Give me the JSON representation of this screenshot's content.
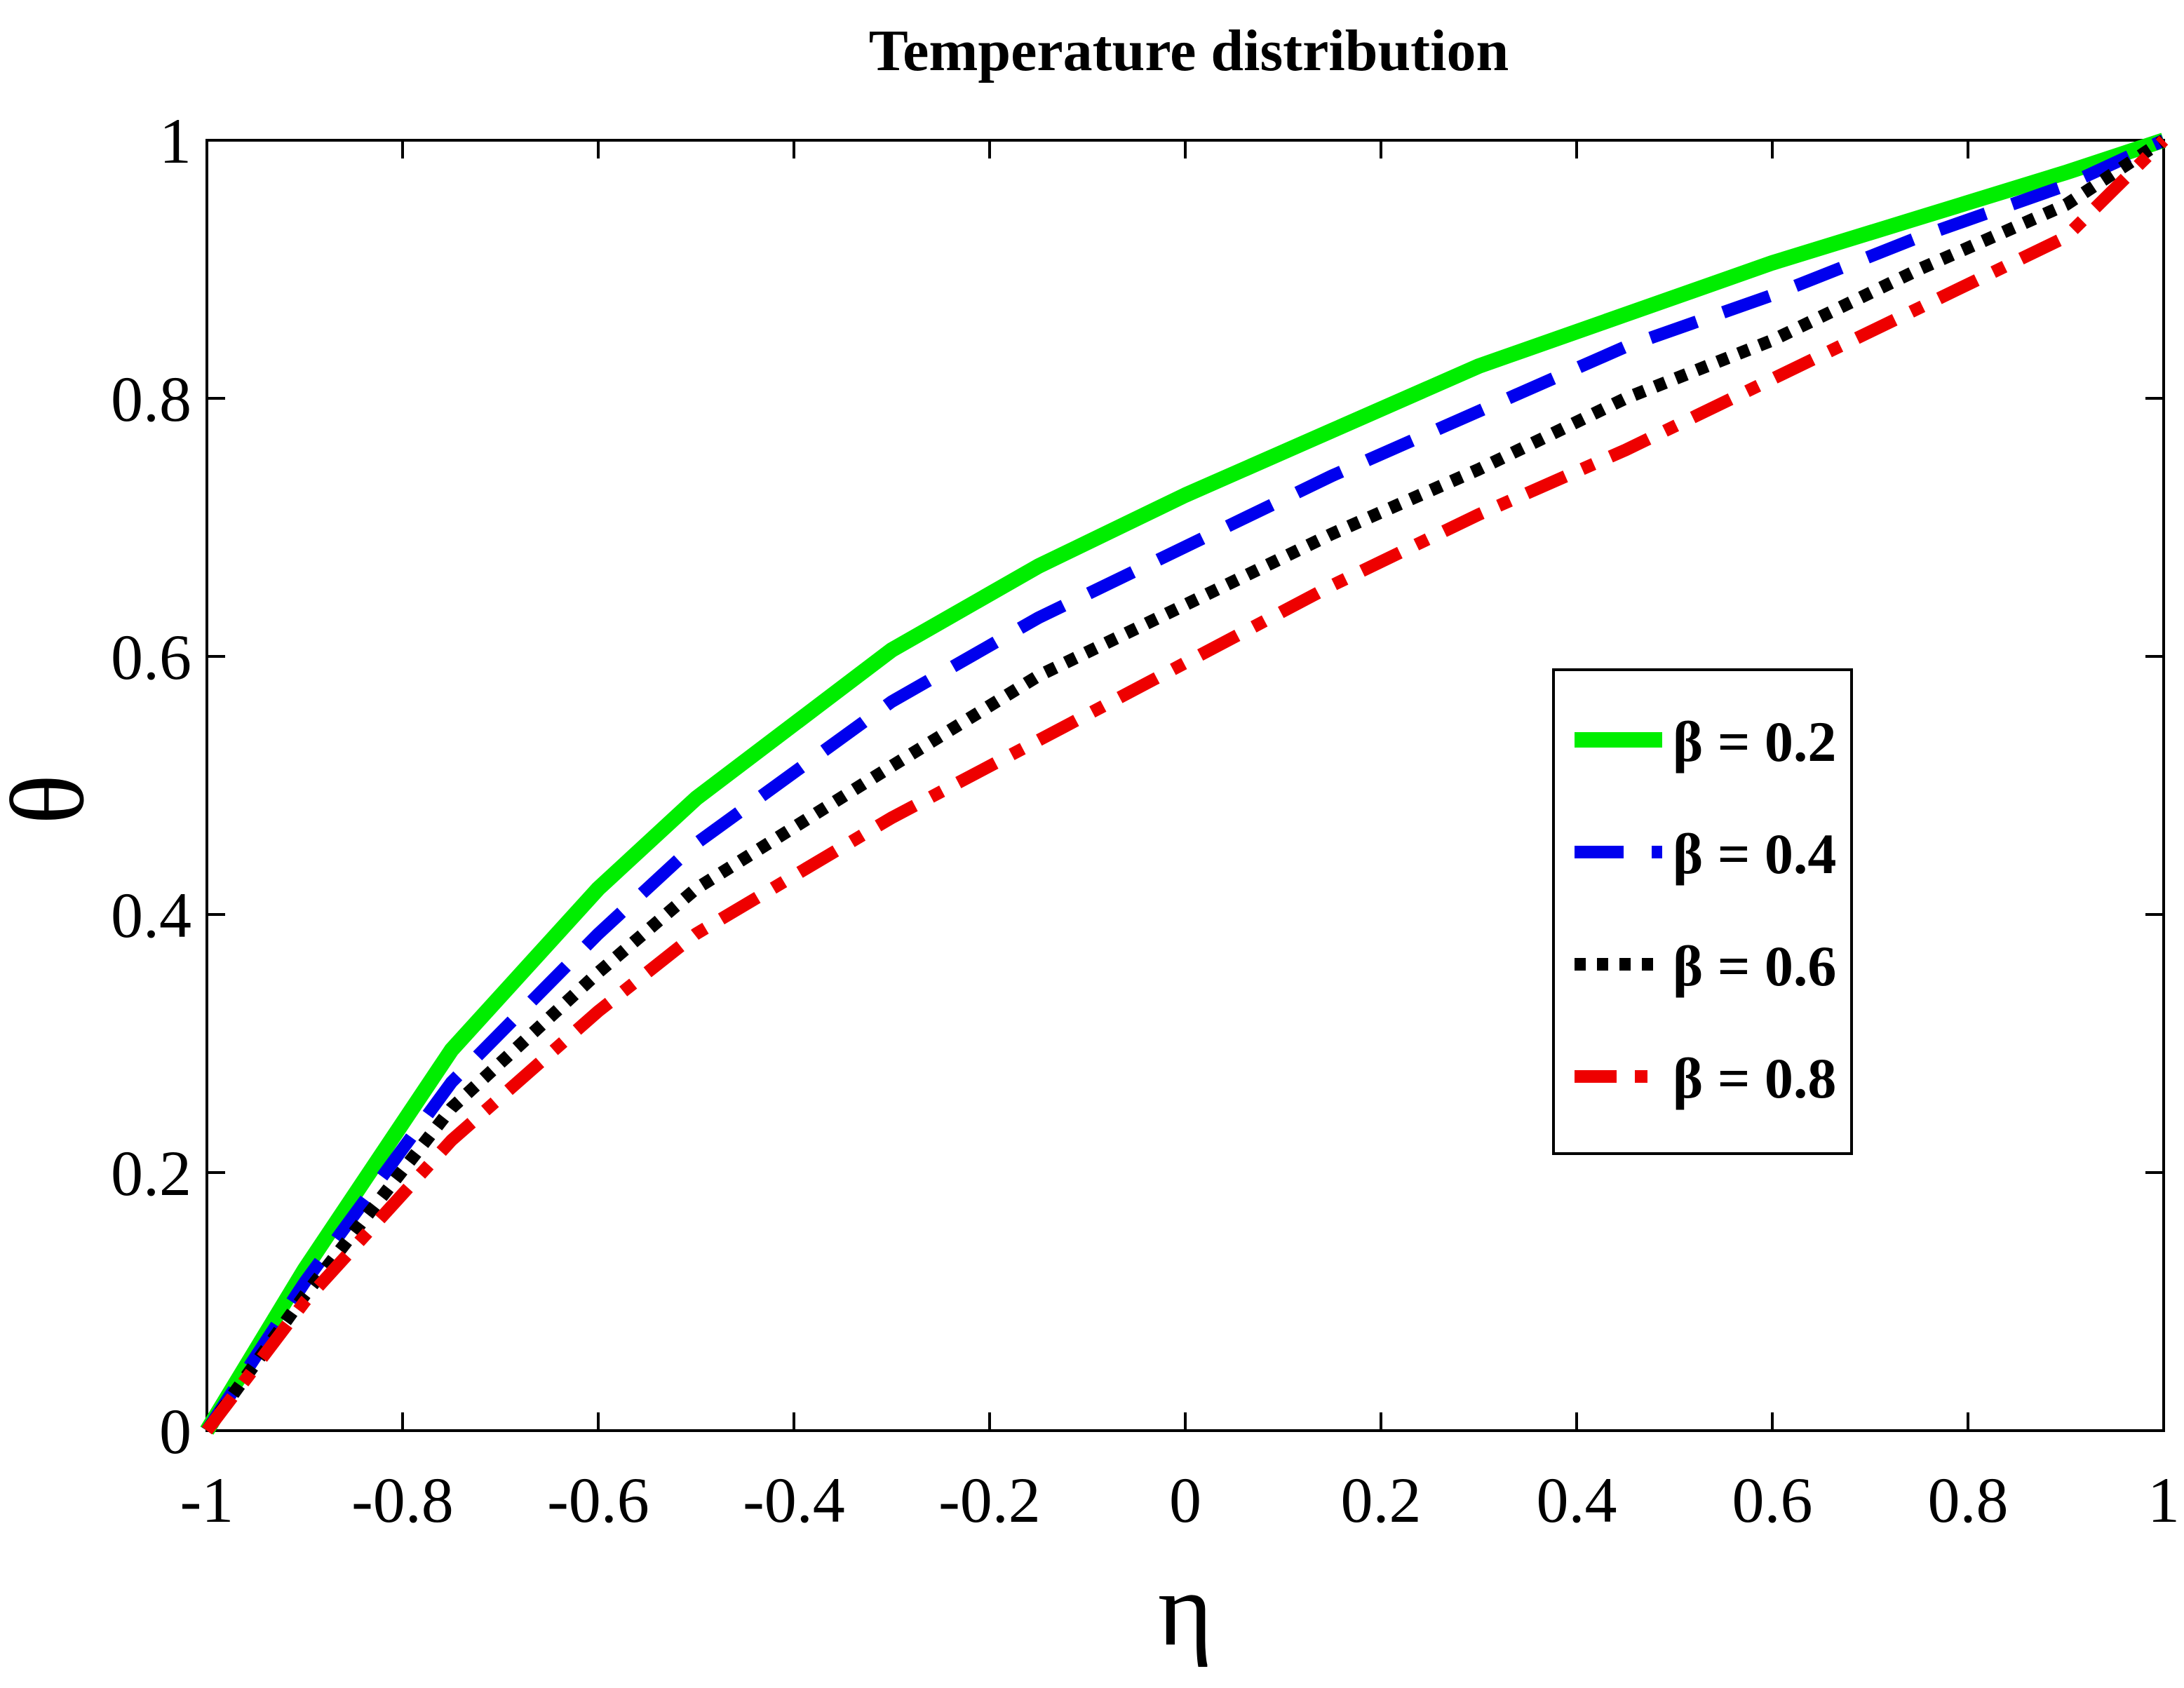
{
  "chart_data": {
    "type": "line",
    "title": "Temperature distribution",
    "xlabel": "η",
    "ylabel": "θ",
    "xlim": [
      -1,
      1
    ],
    "ylim": [
      0,
      1
    ],
    "xticks": [
      -1,
      -0.8,
      -0.6,
      -0.4,
      -0.2,
      0,
      0.2,
      0.4,
      0.6,
      0.8,
      1
    ],
    "xtick_labels": [
      "-1",
      "-0.8",
      "-0.6",
      "-0.4",
      "-0.2",
      "0",
      "0.2",
      "0.4",
      "0.6",
      "0.8",
      "1"
    ],
    "yticks": [
      0,
      0.2,
      0.4,
      0.6,
      0.8,
      1
    ],
    "ytick_labels": [
      "0",
      "0.2",
      "0.4",
      "0.6",
      "0.8",
      "1"
    ],
    "grid": false,
    "legend_position": "right",
    "x": [
      -1,
      -0.9,
      -0.75,
      -0.6,
      -0.5,
      -0.3,
      -0.15,
      0,
      0.15,
      0.3,
      0.45,
      0.6,
      0.75,
      0.9,
      1
    ],
    "series": [
      {
        "name": "β = 0.2",
        "style": "solid",
        "color": "#00ee00",
        "values": [
          0,
          0.125,
          0.295,
          0.42,
          0.49,
          0.605,
          0.67,
          0.725,
          0.775,
          0.825,
          0.865,
          0.905,
          0.94,
          0.975,
          1
        ]
      },
      {
        "name": "β = 0.4",
        "style": "dashed",
        "color": "#0000ee",
        "values": [
          0,
          0.115,
          0.27,
          0.385,
          0.455,
          0.565,
          0.63,
          0.685,
          0.74,
          0.79,
          0.84,
          0.88,
          0.925,
          0.965,
          1
        ]
      },
      {
        "name": "β = 0.6",
        "style": "dotted",
        "color": "#000000",
        "values": [
          0,
          0.105,
          0.25,
          0.355,
          0.42,
          0.515,
          0.585,
          0.64,
          0.695,
          0.745,
          0.8,
          0.845,
          0.9,
          0.95,
          1
        ]
      },
      {
        "name": "β = 0.8",
        "style": "dashdot",
        "color": "#ee0000",
        "values": [
          0,
          0.1,
          0.225,
          0.325,
          0.385,
          0.475,
          0.535,
          0.595,
          0.655,
          0.71,
          0.76,
          0.815,
          0.87,
          0.925,
          1
        ]
      }
    ]
  }
}
